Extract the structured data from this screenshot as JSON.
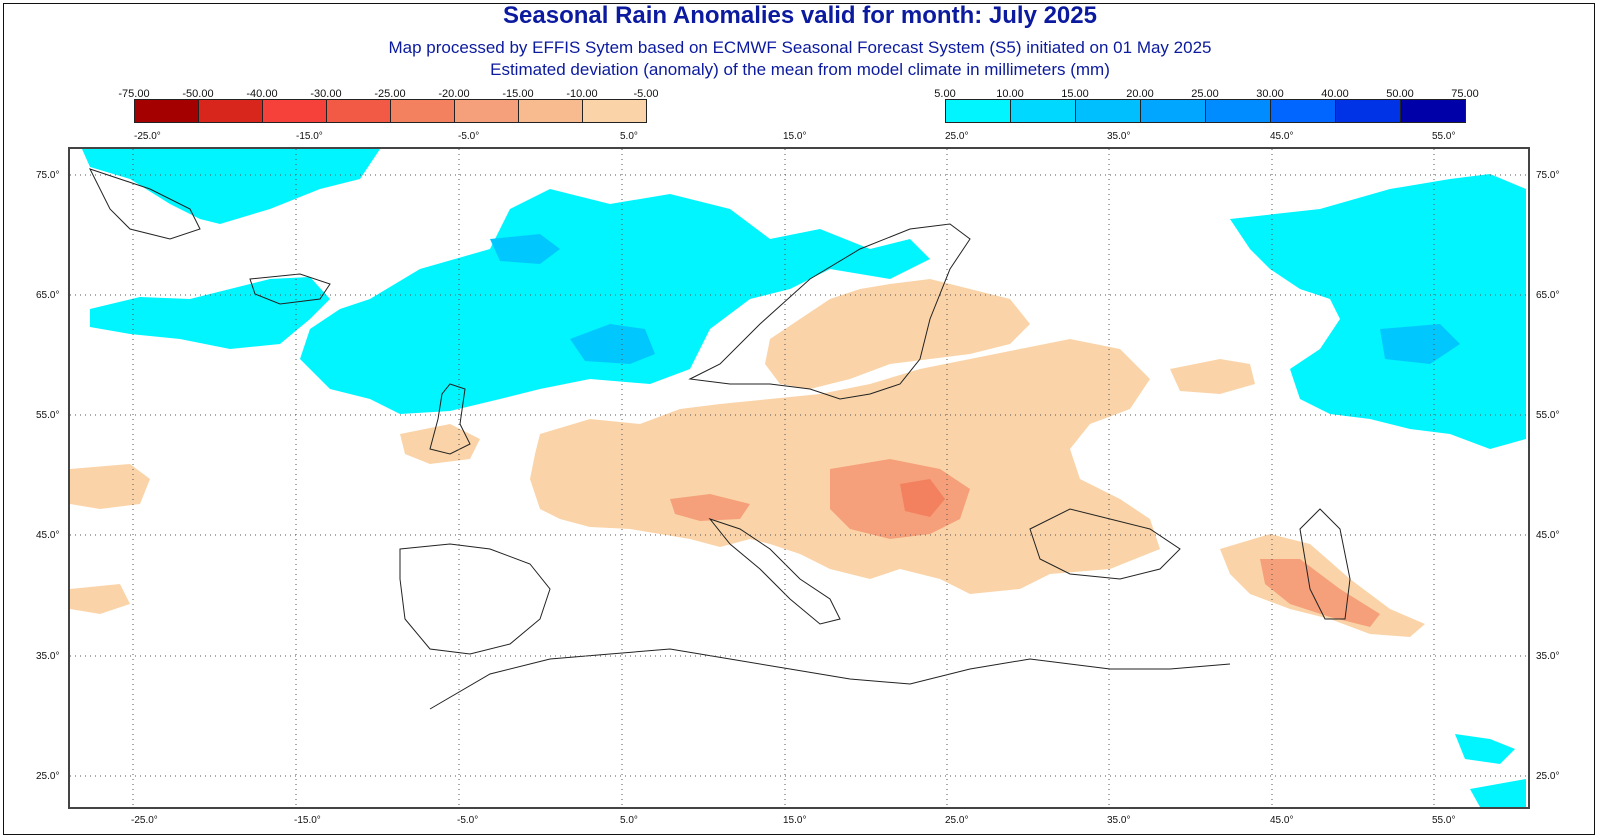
{
  "header": {
    "title": "Seasonal Rain Anomalies valid for month: July 2025",
    "subtitle1": "Map processed by EFFIS Sytem based on ECMWF Seasonal Forecast System (S5) initiated on 01 May 2025",
    "subtitle2": "Estimated deviation (anomaly) of the mean from model climate in millimeters (mm)"
  },
  "legend_negative": {
    "ticks": [
      "-75.00",
      "-50.00",
      "-40.00",
      "-30.00",
      "-25.00",
      "-20.00",
      "-15.00",
      "-10.00",
      "-5.00"
    ],
    "colors": [
      "#a50000",
      "#d9261c",
      "#f5413a",
      "#f25a45",
      "#f3805e",
      "#f5a07a",
      "#f8bb90",
      "#fad4a8"
    ]
  },
  "legend_positive": {
    "ticks": [
      "5.00",
      "10.00",
      "15.00",
      "20.00",
      "25.00",
      "30.00",
      "40.00",
      "50.00",
      "75.00"
    ],
    "colors": [
      "#00f5ff",
      "#00d8ff",
      "#00bfff",
      "#00a6ff",
      "#008cff",
      "#0066ff",
      "#0033e6",
      "#0000a8"
    ]
  },
  "axes": {
    "longitude_labels": [
      "-25.0°",
      "-15.0°",
      "-5.0°",
      "5.0°",
      "15.0°",
      "25.0°",
      "35.0°",
      "45.0°",
      "55.0°"
    ],
    "latitude_labels": [
      "75.0°",
      "65.0°",
      "55.0°",
      "45.0°",
      "35.0°",
      "25.0°"
    ]
  },
  "map": {
    "region": "Europe, North Africa and Middle East",
    "colors": {
      "ocean": "#ffffff",
      "coast": "#222222",
      "positive_anomaly": "#00f5ff",
      "positive_anomaly_strong": "#00c8ff",
      "negative_anomaly": "#fad4a8",
      "negative_anomaly_strong": "#f5a07a",
      "negative_anomaly_stronger": "#f3805e"
    }
  }
}
